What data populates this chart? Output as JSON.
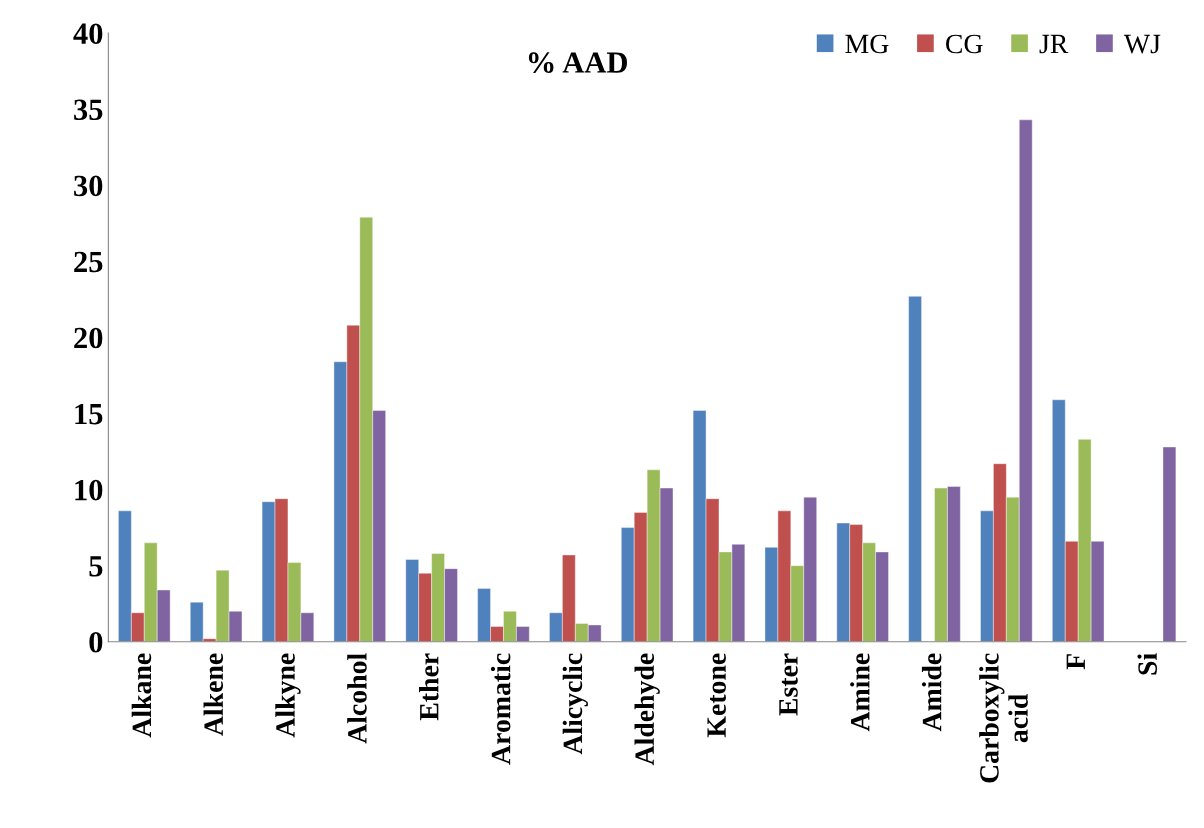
{
  "chart_data": {
    "type": "bar",
    "title": "% AAD",
    "categories": [
      "Alkane",
      "Alkene",
      "Alkyne",
      "Alcohol",
      "Ether",
      "Aromatic",
      "Alicyclic",
      "Aldehyde",
      "Ketone",
      "Ester",
      "Amine",
      "Amide",
      "Carboxylic acid",
      "F",
      "Si"
    ],
    "series": [
      {
        "name": "MG",
        "color": "#4f81bd",
        "values": [
          8.6,
          2.6,
          9.2,
          18.4,
          5.4,
          3.5,
          1.9,
          7.5,
          15.2,
          6.2,
          7.8,
          22.7,
          8.6,
          15.9,
          null
        ]
      },
      {
        "name": "CG",
        "color": "#c0504d",
        "values": [
          1.9,
          0.2,
          9.4,
          20.8,
          4.5,
          1.0,
          5.7,
          8.5,
          9.4,
          8.6,
          7.7,
          null,
          11.7,
          6.6,
          null
        ]
      },
      {
        "name": "JR",
        "color": "#9bbb59",
        "values": [
          6.5,
          4.7,
          5.2,
          27.9,
          5.8,
          2.0,
          1.2,
          11.3,
          5.9,
          5.0,
          6.5,
          10.1,
          9.5,
          13.3,
          null
        ]
      },
      {
        "name": "WJ",
        "color": "#8064a2",
        "values": [
          3.4,
          2.0,
          1.9,
          15.2,
          4.8,
          1.0,
          1.1,
          10.1,
          6.4,
          9.5,
          5.9,
          10.2,
          34.3,
          6.6,
          12.8
        ]
      }
    ],
    "ylim": [
      0,
      40
    ],
    "yticks": [
      0,
      5,
      10,
      15,
      20,
      25,
      30,
      35,
      40
    ],
    "grid": false,
    "legend": "top right"
  }
}
